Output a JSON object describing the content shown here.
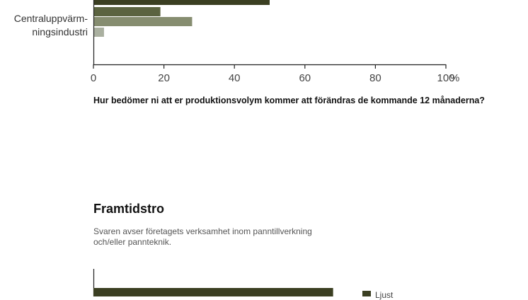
{
  "chart_data": [
    {
      "type": "bar",
      "orientation": "horizontal",
      "categories": [
        "Centraluppvärm-\nningsindustri"
      ],
      "series": [
        {
          "color": "#3b3f22",
          "values": [
            50
          ]
        },
        {
          "color": "#5b6340",
          "values": [
            19
          ]
        },
        {
          "color": "#868d70",
          "values": [
            28
          ]
        },
        {
          "color": "#aab0a0",
          "values": [
            3
          ]
        }
      ],
      "xlim": [
        0,
        100
      ],
      "xticks": [
        "0",
        "20",
        "40",
        "60",
        "80",
        "100"
      ],
      "xunit": "%",
      "title": "Hur bedömer ni att er produktionsvolym kommer att förändras de kommande 12 månaderna?"
    },
    {
      "type": "bar",
      "orientation": "horizontal",
      "xlim": [
        0,
        100
      ],
      "series": [
        {
          "name": "Ljust",
          "color": "#3b3f22",
          "values": [
            68
          ]
        }
      ]
    }
  ],
  "category_label_lines": [
    "Centraluppvärm-",
    "ningsindustri"
  ],
  "section": {
    "title": "Framtidstro",
    "description": "Svaren avser företagets verksamhet inom panntillverkning och/eller pannteknik."
  },
  "legend": [
    {
      "label": "Ljust",
      "color": "#3b3f22"
    }
  ]
}
